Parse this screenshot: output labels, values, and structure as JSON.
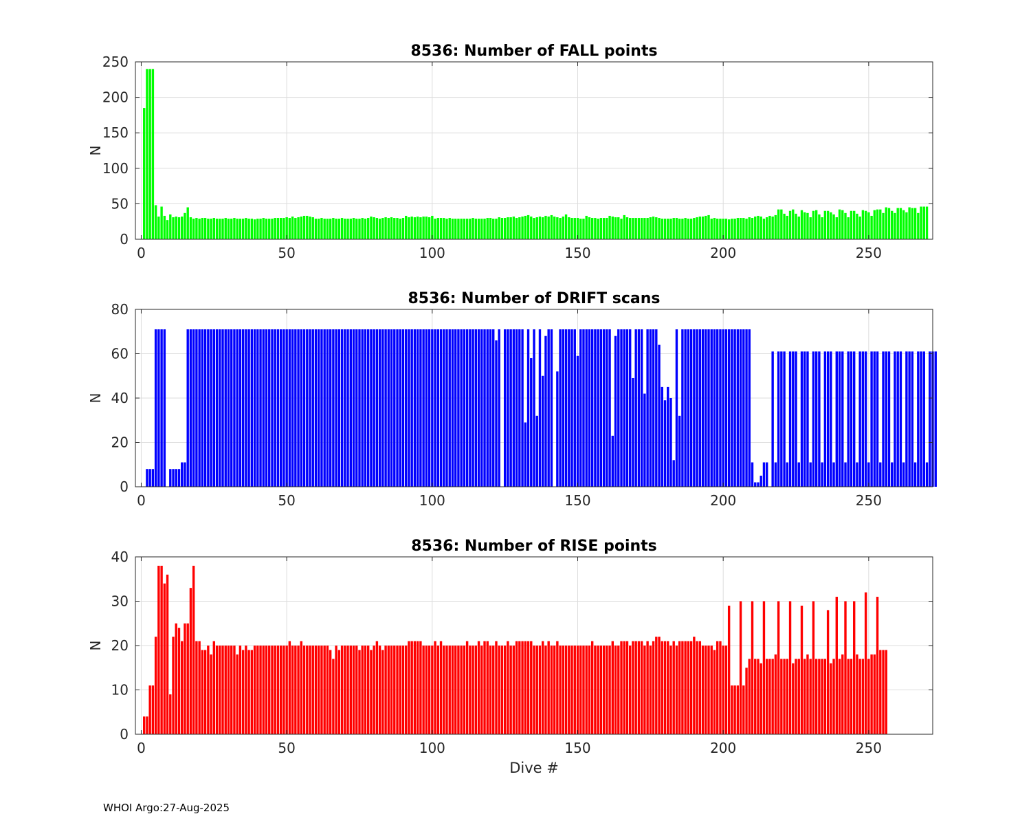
{
  "chart_data": [
    {
      "type": "bar",
      "title": "8536: Number of FALL points",
      "xlabel": "",
      "ylabel": "N",
      "xlim": [
        -2,
        272
      ],
      "ylim": [
        0,
        250
      ],
      "xticks": [
        0,
        50,
        100,
        150,
        200,
        250
      ],
      "yticks": [
        0,
        50,
        100,
        150,
        200,
        250
      ],
      "grid": true,
      "color": "#00ff00",
      "x_start": 1,
      "values": [
        185,
        240,
        240,
        240,
        48,
        32,
        46,
        33,
        27,
        35,
        31,
        32,
        31,
        32,
        37,
        45,
        31,
        29,
        30,
        29,
        30,
        30,
        29,
        29,
        30,
        29,
        29,
        29,
        30,
        29,
        29,
        30,
        29,
        29,
        29,
        30,
        29,
        29,
        28,
        29,
        29,
        30,
        29,
        29,
        29,
        30,
        30,
        30,
        30,
        31,
        30,
        32,
        30,
        31,
        32,
        33,
        33,
        32,
        31,
        29,
        29,
        30,
        29,
        29,
        29,
        30,
        29,
        29,
        30,
        29,
        29,
        29,
        30,
        29,
        29,
        30,
        29,
        30,
        32,
        31,
        30,
        29,
        30,
        31,
        30,
        31,
        30,
        30,
        29,
        30,
        33,
        31,
        32,
        31,
        32,
        31,
        32,
        32,
        31,
        33,
        29,
        30,
        30,
        30,
        29,
        30,
        29,
        29,
        29,
        29,
        29,
        29,
        29,
        30,
        29,
        29,
        29,
        29,
        30,
        30,
        29,
        29,
        31,
        30,
        30,
        31,
        31,
        32,
        30,
        31,
        32,
        33,
        34,
        32,
        30,
        31,
        32,
        31,
        33,
        32,
        34,
        32,
        31,
        30,
        32,
        35,
        31,
        30,
        30,
        30,
        29,
        29,
        33,
        31,
        30,
        30,
        29,
        30,
        30,
        30,
        33,
        32,
        31,
        31,
        29,
        34,
        31,
        30,
        30,
        30,
        30,
        30,
        30,
        30,
        31,
        32,
        31,
        30,
        29,
        29,
        29,
        29,
        30,
        30,
        29,
        29,
        30,
        29,
        29,
        30,
        31,
        32,
        32,
        33,
        34,
        29,
        30,
        29,
        29,
        29,
        29,
        28,
        29,
        29,
        30,
        30,
        30,
        29,
        31,
        30,
        32,
        33,
        32,
        29,
        31,
        33,
        32,
        34,
        42,
        42,
        36,
        33,
        40,
        42,
        36,
        32,
        41,
        38,
        37,
        31,
        40,
        41,
        35,
        31,
        40,
        40,
        38,
        35,
        31,
        42,
        41,
        37,
        31,
        40,
        40,
        36,
        32,
        41,
        40,
        38,
        33,
        41,
        42,
        42,
        37,
        45,
        44,
        40,
        37,
        44,
        44,
        41,
        38,
        45,
        44,
        44,
        37,
        46,
        46,
        46
      ]
    },
    {
      "type": "bar",
      "title": "8536: Number of DRIFT scans",
      "xlabel": "",
      "ylabel": "N",
      "xlim": [
        -2,
        272
      ],
      "ylim": [
        0,
        80
      ],
      "xticks": [
        0,
        50,
        100,
        150,
        200,
        250
      ],
      "yticks": [
        0,
        20,
        40,
        60,
        80
      ],
      "grid": true,
      "color": "#0000ff",
      "x_start": 1,
      "values": [
        0,
        8,
        8,
        8,
        71,
        71,
        71,
        71,
        0,
        8,
        8,
        8,
        8,
        11,
        11,
        71,
        71,
        71,
        71,
        71,
        71,
        71,
        71,
        71,
        71,
        71,
        71,
        71,
        71,
        71,
        71,
        71,
        71,
        71,
        71,
        71,
        71,
        71,
        71,
        71,
        71,
        71,
        71,
        71,
        71,
        71,
        71,
        71,
        71,
        71,
        71,
        71,
        71,
        71,
        71,
        71,
        71,
        71,
        71,
        71,
        71,
        71,
        71,
        71,
        71,
        71,
        71,
        71,
        71,
        71,
        71,
        71,
        71,
        71,
        71,
        71,
        71,
        71,
        71,
        71,
        71,
        71,
        71,
        71,
        71,
        71,
        71,
        71,
        71,
        71,
        71,
        71,
        71,
        71,
        71,
        71,
        71,
        71,
        71,
        71,
        71,
        71,
        71,
        71,
        71,
        71,
        71,
        71,
        71,
        71,
        71,
        71,
        71,
        71,
        71,
        71,
        71,
        71,
        71,
        71,
        71,
        66,
        71,
        0,
        71,
        71,
        71,
        71,
        71,
        71,
        71,
        29,
        71,
        58,
        71,
        32,
        71,
        50,
        68,
        71,
        71,
        0,
        52,
        71,
        71,
        71,
        71,
        71,
        71,
        59,
        71,
        71,
        71,
        71,
        71,
        71,
        71,
        71,
        71,
        71,
        71,
        23,
        68,
        71,
        71,
        71,
        71,
        71,
        49,
        71,
        71,
        71,
        42,
        71,
        71,
        71,
        71,
        64,
        45,
        39,
        45,
        40,
        12,
        71,
        32,
        71,
        71,
        71,
        71,
        71,
        71,
        71,
        71,
        71,
        71,
        71,
        71,
        71,
        71,
        71,
        71,
        71,
        71,
        71,
        71,
        71,
        71,
        71,
        71,
        11,
        2,
        2,
        5,
        11,
        11,
        0,
        61,
        11,
        61,
        61,
        61,
        11,
        61,
        61,
        61,
        11,
        61,
        61,
        61,
        11,
        61,
        61,
        61,
        11,
        61,
        61,
        61,
        11,
        61,
        61,
        61,
        11,
        61,
        61,
        61,
        11,
        61,
        61,
        61,
        11,
        61,
        61,
        61,
        11,
        61,
        61,
        61,
        11,
        61,
        61,
        61,
        11,
        61,
        61,
        61,
        11,
        61,
        61,
        61,
        11,
        61,
        61,
        61
      ]
    },
    {
      "type": "bar",
      "title": "8536: Number of RISE points",
      "xlabel": "Dive #",
      "ylabel": "N",
      "xlim": [
        -2,
        272
      ],
      "ylim": [
        0,
        40
      ],
      "xticks": [
        0,
        50,
        100,
        150,
        200,
        250
      ],
      "yticks": [
        0,
        10,
        20,
        30,
        40
      ],
      "grid": true,
      "color": "#ff0000",
      "x_start": 1,
      "values": [
        4,
        4,
        11,
        11,
        22,
        38,
        38,
        34,
        36,
        9,
        22,
        25,
        24,
        21,
        25,
        25,
        33,
        38,
        21,
        21,
        19,
        19,
        20,
        18,
        21,
        20,
        20,
        20,
        20,
        20,
        20,
        20,
        18,
        20,
        19,
        20,
        19,
        19,
        20,
        20,
        20,
        20,
        20,
        20,
        20,
        20,
        20,
        20,
        20,
        20,
        21,
        20,
        20,
        20,
        21,
        20,
        20,
        20,
        20,
        20,
        20,
        20,
        20,
        20,
        19,
        17,
        20,
        19,
        20,
        20,
        20,
        20,
        20,
        20,
        19,
        20,
        20,
        20,
        19,
        20,
        21,
        20,
        19,
        20,
        20,
        20,
        20,
        20,
        20,
        20,
        20,
        21,
        21,
        21,
        21,
        21,
        20,
        20,
        20,
        20,
        21,
        20,
        21,
        20,
        20,
        20,
        20,
        20,
        20,
        20,
        20,
        21,
        20,
        20,
        20,
        21,
        20,
        21,
        21,
        20,
        20,
        21,
        20,
        20,
        20,
        21,
        20,
        20,
        21,
        21,
        21,
        21,
        21,
        21,
        20,
        20,
        20,
        21,
        20,
        21,
        20,
        20,
        21,
        20,
        20,
        20,
        20,
        20,
        20,
        20,
        20,
        20,
        20,
        20,
        21,
        20,
        20,
        20,
        20,
        20,
        20,
        21,
        20,
        20,
        21,
        21,
        21,
        20,
        21,
        21,
        21,
        21,
        20,
        21,
        20,
        21,
        22,
        22,
        21,
        21,
        21,
        20,
        21,
        20,
        21,
        21,
        21,
        21,
        21,
        22,
        21,
        21,
        20,
        20,
        20,
        20,
        19,
        21,
        21,
        20,
        20,
        29,
        11,
        11,
        11,
        30,
        11,
        15,
        17,
        30,
        17,
        17,
        16,
        30,
        17,
        17,
        17,
        18,
        30,
        17,
        17,
        17,
        30,
        16,
        17,
        17,
        29,
        17,
        18,
        17,
        30,
        17,
        17,
        17,
        17,
        28,
        16,
        17,
        31,
        17,
        18,
        30,
        17,
        17,
        30,
        18,
        17,
        17,
        32,
        17,
        18,
        18,
        31,
        19,
        19,
        19
      ]
    }
  ],
  "footer": "WHOI Argo:27-Aug-2025"
}
